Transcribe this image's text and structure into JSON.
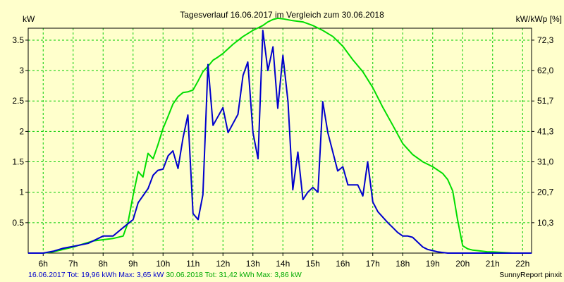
{
  "chart_data": {
    "type": "line",
    "title": "Tagesverlauf 16.06.2017 im Vergleich zum 30.06.2018",
    "ylabel_left": "kW",
    "ylabel_right": "kW/kWp [%]",
    "ylim": [
      0,
      3.65
    ],
    "grid": true,
    "x_tick_labels": [
      "6h",
      "7h",
      "8h",
      "9h",
      "10h",
      "11h",
      "12h",
      "13h",
      "14h",
      "15h",
      "16h",
      "17h",
      "18h",
      "19h",
      "20h",
      "21h",
      "22h"
    ],
    "x_tick_values": [
      6,
      7,
      8,
      9,
      10,
      11,
      12,
      13,
      14,
      15,
      16,
      17,
      18,
      19,
      20,
      21,
      22
    ],
    "xlim": [
      5.5,
      22.3
    ],
    "y_ticks_left": [
      {
        "value": 0.5,
        "label": "0.5"
      },
      {
        "value": 1.0,
        "label": "1"
      },
      {
        "value": 1.5,
        "label": "1.5"
      },
      {
        "value": 2.0,
        "label": "2"
      },
      {
        "value": 2.5,
        "label": "2.5"
      },
      {
        "value": 3.0,
        "label": "3"
      },
      {
        "value": 3.5,
        "label": "3.5"
      }
    ],
    "y_ticks_right": [
      {
        "value": 0.5,
        "label": "10,3"
      },
      {
        "value": 1.0,
        "label": "20,7"
      },
      {
        "value": 1.5,
        "label": "31,0"
      },
      {
        "value": 2.0,
        "label": "41,3"
      },
      {
        "value": 2.5,
        "label": "51,7"
      },
      {
        "value": 3.0,
        "label": "62,0"
      },
      {
        "value": 3.5,
        "label": "72,3"
      }
    ],
    "series": [
      {
        "name": "16.06.2017",
        "color": "#0000cc",
        "x": [
          5.5,
          5.83,
          6.0,
          6.33,
          6.67,
          7.0,
          7.5,
          7.67,
          8.0,
          8.33,
          8.67,
          9.0,
          9.17,
          9.5,
          9.67,
          9.83,
          10.0,
          10.17,
          10.33,
          10.5,
          10.67,
          10.83,
          11.0,
          11.17,
          11.33,
          11.5,
          11.67,
          12.0,
          12.17,
          12.5,
          12.67,
          12.83,
          13.0,
          13.17,
          13.33,
          13.5,
          13.67,
          13.83,
          14.0,
          14.17,
          14.33,
          14.5,
          14.67,
          14.83,
          15.0,
          15.17,
          15.33,
          15.5,
          15.83,
          16.0,
          16.17,
          16.5,
          16.67,
          16.83,
          17.0,
          17.17,
          17.5,
          17.67,
          17.83,
          18.0,
          18.17,
          18.33,
          18.5,
          18.67,
          18.83,
          19.0,
          19.17,
          19.33,
          19.5,
          19.67,
          19.83,
          20.0,
          20.17,
          20.33,
          20.5,
          20.67,
          20.83,
          21.0,
          21.33,
          21.67,
          22.0,
          22.3
        ],
        "values": [
          0.0,
          0.0,
          0.0,
          0.03,
          0.08,
          0.11,
          0.16,
          0.2,
          0.28,
          0.28,
          0.42,
          0.55,
          0.83,
          1.06,
          1.28,
          1.36,
          1.38,
          1.6,
          1.68,
          1.39,
          1.9,
          2.27,
          0.65,
          0.55,
          0.96,
          3.1,
          2.1,
          2.39,
          1.98,
          2.28,
          2.92,
          3.14,
          1.98,
          1.55,
          3.66,
          3.0,
          3.39,
          2.38,
          3.25,
          2.49,
          1.04,
          1.66,
          0.88,
          1.0,
          1.08,
          1.0,
          2.49,
          1.98,
          1.35,
          1.42,
          1.12,
          1.12,
          0.94,
          1.5,
          0.84,
          0.68,
          0.5,
          0.42,
          0.34,
          0.28,
          0.28,
          0.26,
          0.18,
          0.1,
          0.06,
          0.04,
          0.02,
          0.01,
          0.0,
          0.0,
          0.0,
          0.0,
          0.0,
          0.0,
          0.0,
          0.0,
          0.0,
          0.0,
          0.0,
          0.0,
          0.0,
          0.0
        ]
      },
      {
        "name": "30.06.2018",
        "color": "#00dd00",
        "x": [
          5.5,
          6.0,
          6.33,
          6.67,
          7.0,
          7.33,
          7.67,
          8.0,
          8.33,
          8.67,
          8.83,
          9.0,
          9.17,
          9.33,
          9.5,
          9.67,
          9.83,
          10.0,
          10.17,
          10.33,
          10.5,
          10.67,
          10.83,
          11.0,
          11.17,
          11.33,
          11.5,
          11.67,
          11.83,
          12.0,
          12.33,
          12.67,
          13.0,
          13.33,
          13.5,
          13.67,
          13.83,
          14.0,
          14.33,
          14.67,
          15.0,
          15.33,
          15.67,
          16.0,
          16.33,
          16.67,
          17.0,
          17.33,
          17.67,
          18.0,
          18.33,
          18.67,
          19.0,
          19.33,
          19.5,
          19.67,
          19.83,
          20.0,
          20.17,
          20.33,
          20.5,
          20.67,
          20.83,
          21.0,
          21.33,
          21.67,
          22.0,
          22.3
        ],
        "values": [
          0.0,
          0.0,
          0.02,
          0.06,
          0.1,
          0.15,
          0.2,
          0.22,
          0.24,
          0.28,
          0.5,
          0.95,
          1.34,
          1.25,
          1.64,
          1.55,
          1.78,
          2.05,
          2.25,
          2.45,
          2.57,
          2.64,
          2.65,
          2.68,
          2.83,
          2.98,
          3.07,
          3.17,
          3.22,
          3.28,
          3.43,
          3.56,
          3.66,
          3.74,
          3.8,
          3.84,
          3.86,
          3.85,
          3.82,
          3.8,
          3.74,
          3.66,
          3.56,
          3.4,
          3.18,
          2.98,
          2.72,
          2.4,
          2.1,
          1.8,
          1.62,
          1.5,
          1.42,
          1.31,
          1.21,
          1.02,
          0.55,
          0.12,
          0.07,
          0.05,
          0.04,
          0.03,
          0.02,
          0.02,
          0.01,
          0.0,
          0.0,
          0.0
        ]
      }
    ],
    "footer_left": [
      {
        "text": "16.06.2017 Tot: 19,96 kWh Max: 3,65 kW",
        "color": "#0000cc"
      },
      {
        "text": " 30.06.2018 Tot: 31,42 kWh Max: 3,86 kW",
        "color": "#00aa00"
      }
    ],
    "footer_right": "SunnyReport pinxit",
    "colors": {
      "background": "#ffffcc",
      "grid": "#00cc00",
      "axis": "#000000"
    }
  }
}
